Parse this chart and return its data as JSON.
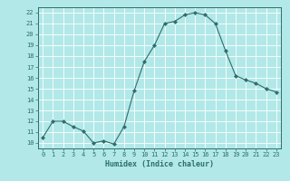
{
  "x": [
    0,
    1,
    2,
    3,
    4,
    5,
    6,
    7,
    8,
    9,
    10,
    11,
    12,
    13,
    14,
    15,
    16,
    17,
    18,
    19,
    20,
    21,
    22,
    23
  ],
  "y": [
    10.5,
    12.0,
    12.0,
    11.5,
    11.1,
    10.0,
    10.2,
    9.9,
    11.5,
    14.8,
    17.5,
    19.0,
    21.0,
    21.2,
    21.8,
    22.0,
    21.8,
    21.0,
    18.5,
    16.2,
    15.8,
    15.5,
    15.0,
    14.7
  ],
  "yticks": [
    10,
    11,
    12,
    13,
    14,
    15,
    16,
    17,
    18,
    19,
    20,
    21,
    22
  ],
  "xtick_labels": [
    "0",
    "1",
    "2",
    "3",
    "4",
    "5",
    "6",
    "7",
    "8",
    "9",
    "10",
    "11",
    "12",
    "13",
    "14",
    "15",
    "16",
    "17",
    "18",
    "19",
    "20",
    "21",
    "22",
    "23"
  ],
  "xlabel": "Humidex (Indice chaleur)",
  "ylim": [
    9.5,
    22.5
  ],
  "xlim": [
    -0.5,
    23.5
  ],
  "line_color": "#2e6e6e",
  "marker_color": "#2e6e6e",
  "bg_color": "#b2e8e8",
  "grid_color": "#ffffff",
  "xlabel_color": "#2e6e6e",
  "tick_color": "#2e6e6e"
}
